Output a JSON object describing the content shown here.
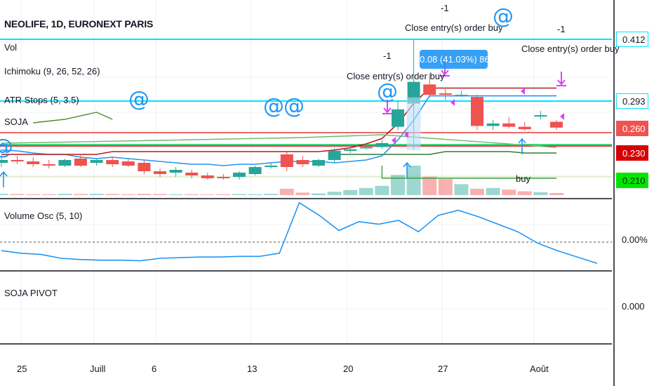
{
  "header": {
    "symbol": "NEOLIFE, 1D, EURONEXT PARIS"
  },
  "indicators": {
    "vol": "Vol",
    "ichimoku": "Ichimoku (9, 26, 52, 26)",
    "atr_stops": "ATR Stops (5, 3.5)",
    "soja": "SOJA",
    "volume_osc": "Volume Osc (5, 10)",
    "soja_pivot": "SOJA PIVOT"
  },
  "price_tags": [
    {
      "label": "0.412",
      "value": 0.412,
      "bg": "#ffffff",
      "border": "#00e5ff",
      "color": "#131722"
    },
    {
      "label": "0.293",
      "value": 0.293,
      "bg": "#ffffff",
      "border": "#00e5ff",
      "color": "#131722"
    },
    {
      "label": "0.260",
      "value": 0.26,
      "bg": "#ef5350",
      "border": "#ef5350",
      "color": "#ffffff"
    },
    {
      "label": "0.230",
      "value": 0.23,
      "bg": "#d50000",
      "border": "#d50000",
      "color": "#ffffff"
    },
    {
      "label": "0.210",
      "value": 0.21,
      "bg": "#00e600",
      "border": "#00e600",
      "color": "#131722"
    }
  ],
  "osc_axis": {
    "label": "0.00%"
  },
  "pivot_axis": {
    "label": "0.000"
  },
  "x_axis": {
    "ticks": [
      "25",
      "Juill",
      "6",
      "13",
      "20",
      "27",
      "Août"
    ]
  },
  "annotations": {
    "close_label": "Close entry(s) order buy",
    "minus_one": "-1",
    "buy": "buy",
    "at_symbol": "@",
    "bubble_text": "0.08 (41.03%) 86"
  },
  "colors": {
    "up": "#26a69a",
    "down": "#ef5350",
    "cyan": "#00e5ff",
    "blue": "#2196f3",
    "magenta": "#e040fb",
    "darkred": "#b71c1c",
    "green": "#2e7d32"
  },
  "chart_data": [
    {
      "type": "candlestick",
      "title": "NEOLIFE, 1D, EURONEXT PARIS",
      "ylim": [
        0.195,
        0.425
      ],
      "candles": [
        {
          "o": 0.222,
          "h": 0.226,
          "l": 0.219,
          "c": 0.224
        },
        {
          "o": 0.224,
          "h": 0.227,
          "l": 0.221,
          "c": 0.223
        },
        {
          "o": 0.223,
          "h": 0.226,
          "l": 0.219,
          "c": 0.221
        },
        {
          "o": 0.221,
          "h": 0.224,
          "l": 0.218,
          "c": 0.22
        },
        {
          "o": 0.22,
          "h": 0.225,
          "l": 0.219,
          "c": 0.224
        },
        {
          "o": 0.225,
          "h": 0.228,
          "l": 0.219,
          "c": 0.22
        },
        {
          "o": 0.222,
          "h": 0.225,
          "l": 0.22,
          "c": 0.224
        },
        {
          "o": 0.224,
          "h": 0.226,
          "l": 0.219,
          "c": 0.221
        },
        {
          "o": 0.223,
          "h": 0.225,
          "l": 0.219,
          "c": 0.22
        },
        {
          "o": 0.222,
          "h": 0.224,
          "l": 0.214,
          "c": 0.216
        },
        {
          "o": 0.216,
          "h": 0.218,
          "l": 0.212,
          "c": 0.214
        },
        {
          "o": 0.215,
          "h": 0.219,
          "l": 0.212,
          "c": 0.217
        },
        {
          "o": 0.215,
          "h": 0.217,
          "l": 0.211,
          "c": 0.213
        },
        {
          "o": 0.213,
          "h": 0.215,
          "l": 0.21,
          "c": 0.211
        },
        {
          "o": 0.212,
          "h": 0.214,
          "l": 0.209,
          "c": 0.211
        },
        {
          "o": 0.212,
          "h": 0.216,
          "l": 0.21,
          "c": 0.215
        },
        {
          "o": 0.214,
          "h": 0.22,
          "l": 0.213,
          "c": 0.219
        },
        {
          "o": 0.219,
          "h": 0.222,
          "l": 0.218,
          "c": 0.22
        },
        {
          "o": 0.228,
          "h": 0.231,
          "l": 0.216,
          "c": 0.219
        },
        {
          "o": 0.224,
          "h": 0.227,
          "l": 0.219,
          "c": 0.221
        },
        {
          "o": 0.22,
          "h": 0.225,
          "l": 0.219,
          "c": 0.224
        },
        {
          "o": 0.224,
          "h": 0.235,
          "l": 0.222,
          "c": 0.231
        },
        {
          "o": 0.231,
          "h": 0.236,
          "l": 0.229,
          "c": 0.233
        },
        {
          "o": 0.235,
          "h": 0.239,
          "l": 0.233,
          "c": 0.236
        },
        {
          "o": 0.236,
          "h": 0.245,
          "l": 0.234,
          "c": 0.241
        },
        {
          "o": 0.262,
          "h": 0.293,
          "l": 0.258,
          "c": 0.283
        },
        {
          "o": 0.29,
          "h": 0.412,
          "l": 0.232,
          "c": 0.33
        },
        {
          "o": 0.325,
          "h": 0.346,
          "l": 0.3,
          "c": 0.305
        },
        {
          "o": 0.308,
          "h": 0.316,
          "l": 0.295,
          "c": 0.306
        },
        {
          "o": 0.303,
          "h": 0.313,
          "l": 0.301,
          "c": 0.305
        },
        {
          "o": 0.301,
          "h": 0.305,
          "l": 0.258,
          "c": 0.263
        },
        {
          "o": 0.263,
          "h": 0.27,
          "l": 0.258,
          "c": 0.266
        },
        {
          "o": 0.266,
          "h": 0.274,
          "l": 0.26,
          "c": 0.262
        },
        {
          "o": 0.262,
          "h": 0.268,
          "l": 0.257,
          "c": 0.259
        },
        {
          "o": 0.276,
          "h": 0.281,
          "l": 0.271,
          "c": 0.276
        },
        {
          "o": 0.268,
          "h": 0.27,
          "l": 0.258,
          "c": 0.261
        }
      ],
      "volume": [
        6,
        5,
        4,
        4,
        6,
        5,
        6,
        5,
        4,
        6,
        5,
        4,
        4,
        3,
        4,
        5,
        4,
        6,
        30,
        12,
        8,
        16,
        24,
        34,
        44,
        96,
        140,
        88,
        76,
        52,
        30,
        34,
        26,
        18,
        14,
        10
      ],
      "horizontal_levels": [
        0.412,
        0.293,
        0.26,
        0.23,
        0.21
      ],
      "series": [
        {
          "name": "ATR Stops",
          "values": [
            null,
            null,
            null,
            null,
            null,
            null,
            null,
            null,
            null,
            null,
            null,
            null,
            null,
            null,
            null,
            null,
            null,
            null,
            null,
            null,
            null,
            0.228,
            0.228,
            0.228,
            0.228,
            0.228,
            0.228,
            0.228,
            0.23,
            0.23,
            0.23,
            0.23,
            0.23,
            0.229,
            0.229,
            0.229
          ]
        },
        {
          "values": [
            0.232,
            0.231,
            0.229,
            0.228,
            0.228,
            0.226,
            0.225,
            0.226,
            0.225,
            0.224,
            0.223,
            0.222,
            0.221,
            0.221,
            0.22,
            0.221,
            0.221,
            0.222,
            0.223,
            0.223,
            0.223,
            0.222,
            0.223,
            0.224,
            0.227,
            0.245,
            0.27,
            0.303,
            0.303,
            0.303,
            0.303,
            0.303,
            0.303,
            0.303,
            0.303,
            0.303
          ]
        },
        {
          "values": [
            0.228,
            0.228,
            0.228,
            0.228,
            0.228,
            0.228,
            0.228,
            0.23,
            0.23,
            0.23,
            0.23,
            0.23,
            0.23,
            0.23,
            0.23,
            0.23,
            0.23,
            0.23,
            0.23,
            0.23,
            0.23,
            0.232,
            0.235,
            0.24,
            0.247,
            0.266,
            0.29,
            0.318,
            0.318,
            0.318,
            0.318,
            0.318,
            0.318,
            0.318,
            0.318,
            0.318
          ]
        }
      ]
    },
    {
      "type": "line",
      "title": "Volume Osc (5, 10)",
      "ylabel": "",
      "values": [
        2,
        -2,
        -4,
        -10,
        -12,
        -13,
        -13,
        -14,
        -10,
        -9,
        -8,
        -8,
        -7,
        -7,
        -2,
        78,
        58,
        34,
        48,
        44,
        50,
        32,
        58,
        66,
        56,
        44,
        32,
        14,
        2,
        -8,
        -18
      ]
    }
  ]
}
